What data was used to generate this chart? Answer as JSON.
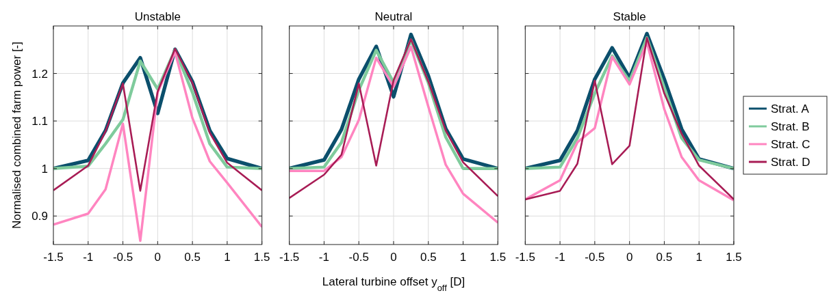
{
  "chart_data": [
    {
      "type": "line",
      "title": "Unstable",
      "ylabel": "Normalised combined farm power [-]",
      "xlim": [
        -1.5,
        1.5
      ],
      "xticks": [
        -1.5,
        -1,
        -0.5,
        0,
        0.5,
        1,
        1.5
      ],
      "ylim": [
        0.84,
        1.3
      ],
      "yticks": [
        0.9,
        1,
        1.1,
        1.2
      ],
      "grid": true,
      "line_style": "solid",
      "marker": "none",
      "x": [
        -1.5,
        -1,
        -0.75,
        -0.5,
        -0.25,
        0,
        0.25,
        0.5,
        0.75,
        1,
        1.5
      ],
      "series": [
        {
          "color": "#0b4f6c",
          "values": [
            1.0,
            1.017,
            1.08,
            1.18,
            1.233,
            1.116,
            1.251,
            1.183,
            1.08,
            1.021,
            1.0
          ]
        },
        {
          "color": "#7fcb9c",
          "values": [
            1.0,
            1.005,
            1.052,
            1.103,
            1.226,
            1.167,
            1.25,
            1.16,
            1.052,
            1.003,
            1.0
          ]
        },
        {
          "color": "#ff85c0",
          "values": [
            0.882,
            0.905,
            0.956,
            1.094,
            0.848,
            1.16,
            1.245,
            1.106,
            1.015,
            0.97,
            0.877
          ]
        },
        {
          "color": "#a81c55",
          "values": [
            0.954,
            1.006,
            1.078,
            1.179,
            0.953,
            1.162,
            1.252,
            1.18,
            1.075,
            1.012,
            0.954
          ]
        }
      ]
    },
    {
      "type": "line",
      "title": "Neutral",
      "xlabel": "Lateral turbine offset y$_{off}$ [D]",
      "xlim": [
        -1.5,
        1.5
      ],
      "xticks": [
        -1.5,
        -1,
        -0.5,
        0,
        0.5,
        1,
        1.5
      ],
      "ylim": [
        0.84,
        1.3
      ],
      "yticks": [
        0.9,
        1,
        1.1,
        1.2
      ],
      "tick_labels": "x",
      "grid": true,
      "line_style": "solid",
      "marker": "none",
      "x": [
        -1.5,
        -1,
        -0.75,
        -0.5,
        -0.25,
        0,
        0.25,
        0.5,
        0.75,
        1,
        1.5
      ],
      "series": [
        {
          "color": "#0b4f6c",
          "values": [
            1.0,
            1.018,
            1.082,
            1.188,
            1.257,
            1.151,
            1.282,
            1.195,
            1.084,
            1.02,
            1.0
          ]
        },
        {
          "color": "#7fcb9c",
          "values": [
            1.0,
            1.003,
            1.055,
            1.165,
            1.249,
            1.181,
            1.27,
            1.18,
            1.066,
            1.0,
            1.0
          ]
        },
        {
          "color": "#ff85c0",
          "values": [
            0.995,
            0.995,
            1.024,
            1.102,
            1.233,
            1.172,
            1.256,
            1.13,
            1.008,
            0.947,
            0.886
          ]
        },
        {
          "color": "#a81c55",
          "values": [
            0.938,
            0.987,
            1.029,
            1.179,
            1.006,
            1.186,
            1.272,
            1.183,
            1.08,
            1.013,
            0.942
          ]
        }
      ]
    },
    {
      "type": "line",
      "title": "Stable",
      "xlim": [
        -1.5,
        1.5
      ],
      "xticks": [
        -1.5,
        -1,
        -0.5,
        0,
        0.5,
        1,
        1.5
      ],
      "ylim": [
        0.84,
        1.3
      ],
      "yticks": [
        0.9,
        1,
        1.1,
        1.2
      ],
      "tick_labels": "x",
      "grid": true,
      "line_style": "solid",
      "marker": "none",
      "legend": "right",
      "x": [
        -1.5,
        -1,
        -0.75,
        -0.5,
        -0.25,
        0,
        0.25,
        0.5,
        0.75,
        1,
        1.5
      ],
      "series": [
        {
          "name": "Strat. A",
          "color": "#0b4f6c",
          "values": [
            1.0,
            1.017,
            1.08,
            1.188,
            1.254,
            1.191,
            1.284,
            1.188,
            1.083,
            1.02,
            1.0
          ]
        },
        {
          "name": "Strat. B",
          "color": "#7fcb9c",
          "values": [
            1.0,
            1.003,
            1.064,
            1.158,
            1.237,
            1.184,
            1.275,
            1.17,
            1.064,
            1.018,
            1.0
          ]
        },
        {
          "name": "Strat. C",
          "color": "#ff85c0",
          "values": [
            0.935,
            0.975,
            1.055,
            1.085,
            1.235,
            1.177,
            1.265,
            1.125,
            1.024,
            0.975,
            0.933
          ]
        },
        {
          "name": "Strat. D",
          "color": "#a81c55",
          "values": [
            0.935,
            0.953,
            1.01,
            1.185,
            1.009,
            1.048,
            1.275,
            1.158,
            1.073,
            1.006,
            0.935
          ]
        }
      ]
    }
  ]
}
